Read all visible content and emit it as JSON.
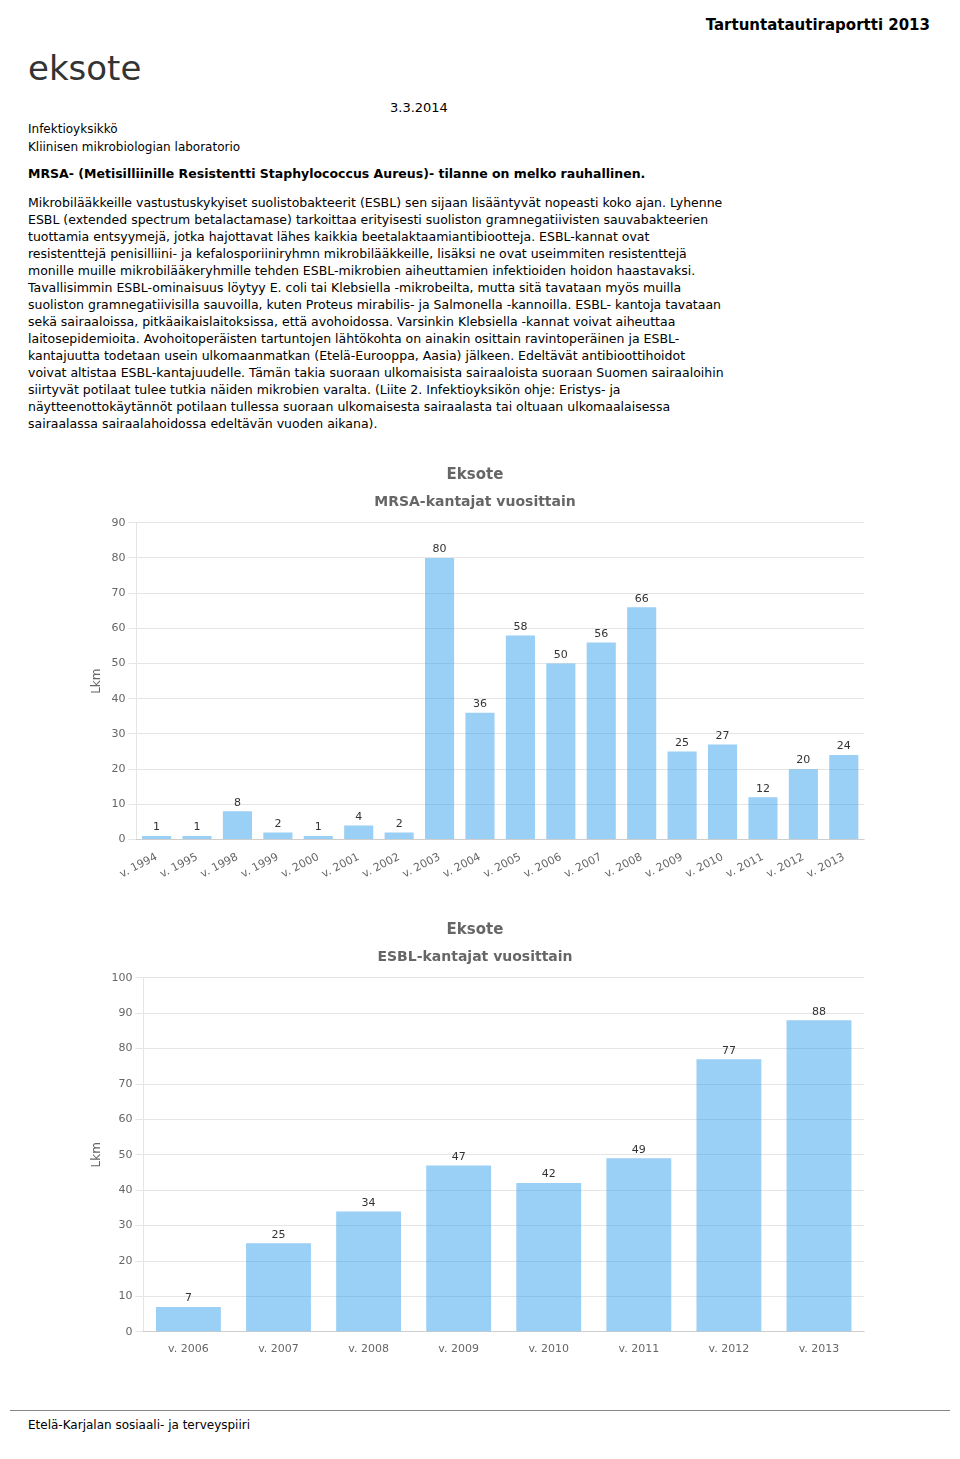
{
  "annotations": [
    "Tartuntatautiraportti 2013",
    "eksote",
    "3.3.2014",
    "Infektioyksikkö",
    "Kliinisen mikrobiologian laboratorio",
    "MRSA- (Metisilliinille Resistentti Staphylococcus Aureus)- tilanne on melko rauhallinen.",
    "Mikrobilääkkeille vastustuskykyiset suolistobakteerit (ESBL) sen sijaan lisääntyvät nopeasti koko ajan. Lyhenne",
    "ESBL (extended spectrum betalactamase) tarkoittaa erityisesti suoliston gramnegatiivisten sauvabakteerien",
    "tuottamia entsyymejä, jotka hajottavat lähes kaikkia beetalaktaamiantibiootteja. ESBL-kannat ovat",
    "resistenttejä penisilliini- ja kefalosporiiniryhmn mikrobilääkkeille, lisäksi ne ovat useimmiten resistenttejä",
    "monille muille mikrobilääkeryhmille tehden ESBL-mikrobien aiheuttamien infektioiden hoidon haastavaksi.",
    "Tavallisimmin ESBL-ominaisuus löytyy E. coli tai Klebsiella -mikrobeilta, mutta sitä tavataan myös muilla",
    "suoliston gramnegatiivisilla sauvoilla, kuten Proteus mirabilis- ja Salmonella -kannoilla. ESBL- kantoja tavataan",
    "sekä sairaaloissa, pitkäaikaislaitoksissa, että avohoidossa. Varsinkin Klebsiella -kannat voivat aiheuttaa",
    "laitosepidemioita. Avohoitoperäisten tartuntojen lähtökohta on ainakin osittain ravintoperäinen ja ESBL-",
    "kantajuutta todetaan usein ulkomaanmatkan (Etelä-Eurooppa, Aasia) jälkeen. Edeltävät antibioottihoidot",
    "voivat altistaa ESBL-kantajuudelle. Tämän takia suoraan ulkomaisista sairaaloista suoraan Suomen sairaaloihin",
    "siirtyvät potilaat tulee tutkia näiden mikrobien varalta. (Liite 2. Infektioyksikön ohje: Eristys- ja",
    "näytteenottokäytännöt potilaan tullessa suoraan ulkomaisesta sairaalasta tai oltuaan ulkomaalaisessa",
    "sairaalassa sairaalahoidossa edeltävän vuoden aikana).",
    "Etelä-Karjalan sosiaali- ja terveyspiiri"
  ],
  "chart_data": [
    {
      "type": "bar",
      "title": "Eksote",
      "subtitle": "MRSA-kantajat vuosittain",
      "ylabel": "Lkm",
      "categories": [
        "v. 1994",
        "v. 1995",
        "v. 1998",
        "v. 1999",
        "v. 2000",
        "v. 2001",
        "v. 2002",
        "v. 2003",
        "v. 2004",
        "v. 2005",
        "v. 2006",
        "v. 2007",
        "v. 2008",
        "v. 2009",
        "v. 2010",
        "v. 2011",
        "v. 2012",
        "v. 2013"
      ],
      "values": [
        1,
        1,
        8,
        2,
        1,
        4,
        2,
        80,
        36,
        58,
        50,
        56,
        66,
        25,
        27,
        12,
        20,
        24
      ],
      "ylim": [
        0,
        90
      ],
      "yticks": [
        0,
        10,
        20,
        30,
        40,
        50,
        60,
        70,
        80,
        90
      ],
      "grid": true,
      "data_labels": true
    },
    {
      "type": "bar",
      "title": "Eksote",
      "subtitle": "ESBL-kantajat vuosittain",
      "ylabel": "Lkm",
      "categories": [
        "v. 2006",
        "v. 2007",
        "v. 2008",
        "v. 2009",
        "v. 2010",
        "v. 2011",
        "v. 2012",
        "v. 2013"
      ],
      "values": [
        7,
        25,
        34,
        47,
        42,
        49,
        77,
        88
      ],
      "ylim": [
        0,
        100
      ],
      "yticks": [
        0,
        10,
        20,
        30,
        40,
        50,
        60,
        70,
        80,
        90,
        100
      ],
      "grid": true,
      "data_labels": true
    }
  ]
}
